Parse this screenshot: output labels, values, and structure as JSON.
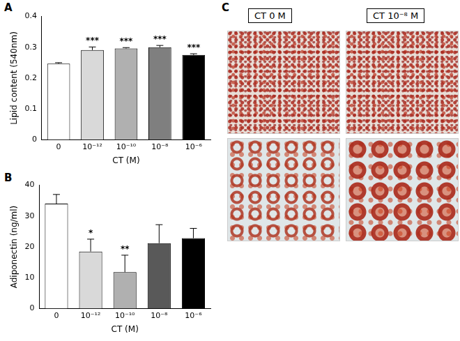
{
  "chart_data": [
    {
      "type": "bar",
      "x_label": "CT (M)",
      "y_label": "Lipid content (540nm)",
      "categories": [
        "0",
        "10⁻¹²",
        "10⁻¹⁰",
        "10⁻⁸",
        "10⁻⁶"
      ],
      "values": [
        0.247,
        0.291,
        0.296,
        0.3,
        0.275
      ],
      "errors": [
        0.003,
        0.01,
        0.003,
        0.006,
        0.004
      ],
      "colors": [
        "#ffffff",
        "#d9d9d9",
        "#b0b0b0",
        "#7f7f7f",
        "#000000"
      ],
      "annotations": [
        {
          "category": "10⁻¹²",
          "text": "***"
        },
        {
          "category": "10⁻¹⁰",
          "text": "***"
        },
        {
          "category": "10⁻⁸",
          "text": "***"
        },
        {
          "category": "10⁻⁶",
          "text": "***"
        }
      ],
      "ylim": [
        0,
        0.4
      ],
      "yticks": [
        0,
        0.1,
        0.2,
        0.3,
        0.4
      ],
      "grid": false
    },
    {
      "type": "bar",
      "x_label": "CT (M)",
      "y_label": "Adiponectin (ng/ml)",
      "categories": [
        "0",
        "10⁻¹²",
        "10⁻¹⁰",
        "10⁻⁸",
        "10⁻⁶"
      ],
      "values": [
        34,
        18.5,
        11.8,
        21.2,
        22.8
      ],
      "errors": [
        3,
        4,
        5.5,
        6,
        3.2
      ],
      "colors": [
        "#ffffff",
        "#d9d9d9",
        "#b0b0b0",
        "#595959",
        "#000000"
      ],
      "annotations": [
        {
          "category": "10⁻¹²",
          "text": "*"
        },
        {
          "category": "10⁻¹⁰",
          "text": "**"
        }
      ],
      "ylim": [
        0,
        40
      ],
      "yticks": [
        0,
        10,
        20,
        30,
        40
      ],
      "grid": false
    }
  ],
  "panel_labels": [
    "A",
    "B",
    "C"
  ],
  "images": {
    "columns": [
      "CT 0 M",
      "CT 10⁻⁸ M"
    ]
  }
}
